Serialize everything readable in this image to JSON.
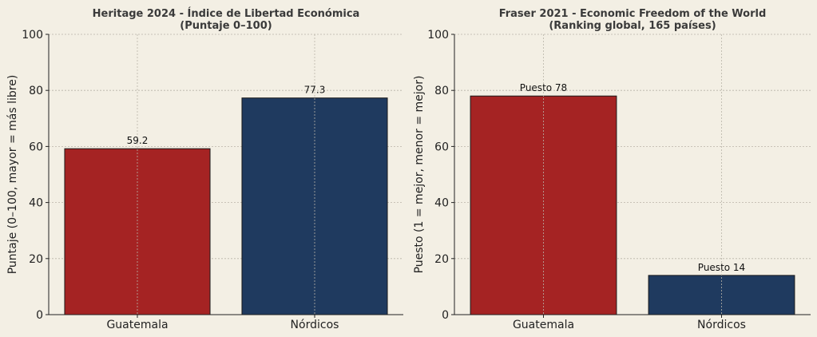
{
  "chart_data": [
    {
      "type": "bar",
      "title": "Heritage 2024 - Índice de Libertad Económica",
      "subtitle": "(Puntaje 0–100)",
      "ylabel": "Puntaje (0–100, mayor = más libre)",
      "xlabel": "",
      "categories": [
        "Guatemala",
        "Nórdicos"
      ],
      "values": [
        59.2,
        77.3
      ],
      "data_labels": [
        "59.2",
        "77.3"
      ],
      "colors": [
        "#a52323",
        "#1f3a5f"
      ],
      "ylim": [
        0,
        100
      ],
      "yticks": [
        0,
        20,
        40,
        60,
        80,
        100
      ],
      "grid": true
    },
    {
      "type": "bar",
      "title": "Fraser 2021 - Economic Freedom of the World",
      "subtitle": "(Ranking global, 165 países)",
      "ylabel": "Puesto (1 = mejor, menor = mejor)",
      "xlabel": "",
      "categories": [
        "Guatemala",
        "Nórdicos"
      ],
      "values": [
        78,
        14
      ],
      "data_labels": [
        "Puesto 78",
        "Puesto 14"
      ],
      "colors": [
        "#a52323",
        "#1f3a5f"
      ],
      "ylim": [
        0,
        100
      ],
      "yticks": [
        0,
        20,
        40,
        60,
        80,
        100
      ],
      "grid": true
    }
  ]
}
